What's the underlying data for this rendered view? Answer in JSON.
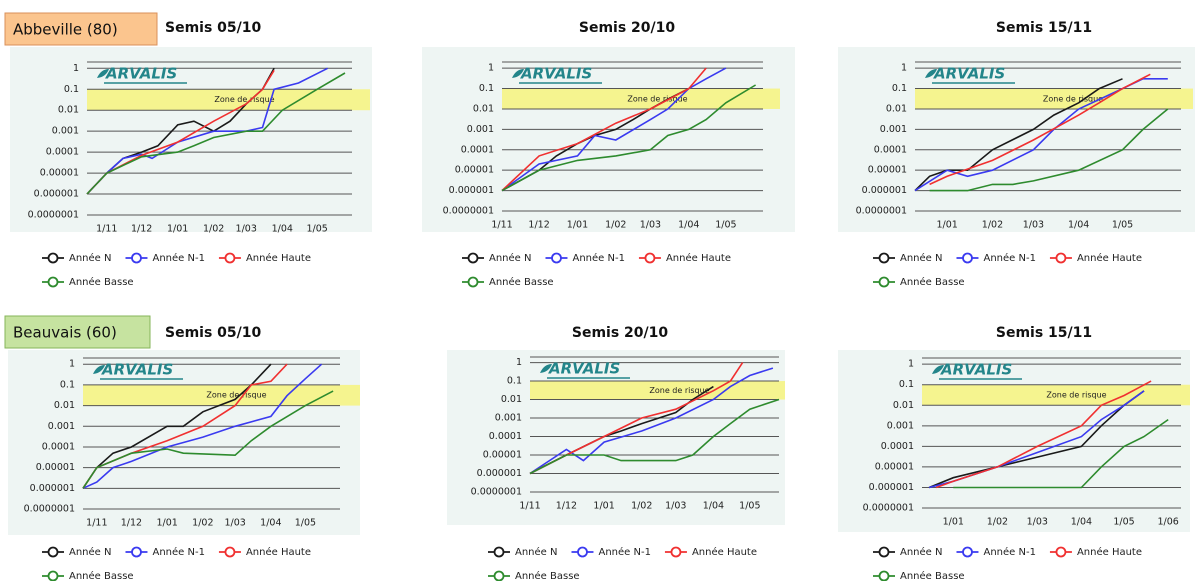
{
  "chart_data": [
    {
      "type": "line",
      "site": "Abbeville (80)",
      "title": "Semis 05/10",
      "logo": "ARVALIS",
      "yscale": "log",
      "grid": true,
      "ylim": [
        1e-07,
        2
      ],
      "yticks": [
        1,
        0.1,
        0.01,
        0.001,
        0.0001,
        1e-05,
        1e-06,
        {
          "value": 1e-07,
          "label": "0.0000001"
        }
      ],
      "xlim": [
        "15/10",
        "31/05"
      ],
      "xticks": [
        "1/11",
        "1/12",
        "1/01",
        "1/02",
        "1/03",
        "1/04",
        "1/05"
      ],
      "risk_zone": {
        "label": "Zone de risque",
        "range": [
          0.01,
          0.1
        ],
        "color": "#f6f37c"
      },
      "series": [
        {
          "name": "Année N",
          "color": "#1a1a1a",
          "x": [
            "15/10",
            "1/11",
            "15/11",
            "1/12",
            "15/12",
            "1/01",
            "15/01",
            "1/02",
            "15/02",
            "1/03",
            "15/03",
            "25/03"
          ],
          "values": [
            1e-06,
            1e-05,
            5e-05,
            0.0001,
            0.0002,
            0.002,
            0.003,
            0.001,
            0.003,
            0.02,
            0.1,
            1
          ]
        },
        {
          "name": "Année N-1",
          "color": "#3a3af0",
          "x": [
            "15/10",
            "1/11",
            "15/11",
            "1/12",
            "10/12",
            "1/01",
            "1/02",
            "1/03",
            "15/03",
            "25/03",
            "15/04",
            "10/05"
          ],
          "values": [
            1e-06,
            1e-05,
            5e-05,
            8e-05,
            5e-05,
            0.0003,
            0.001,
            0.001,
            0.0015,
            0.1,
            0.2,
            1
          ]
        },
        {
          "name": "Année Haute",
          "color": "#f03030",
          "x": [
            "15/10",
            "1/11",
            "1/12",
            "1/01",
            "1/02",
            "1/03",
            "15/03",
            "25/03"
          ],
          "values": [
            1e-06,
            1e-05,
            7e-05,
            0.0003,
            0.003,
            0.02,
            0.1,
            0.8
          ]
        },
        {
          "name": "Année Basse",
          "color": "#2e8b2e",
          "x": [
            "15/10",
            "1/11",
            "1/12",
            "1/01",
            "15/01",
            "1/02",
            "1/03",
            "15/03",
            "1/04",
            "1/05",
            "25/05"
          ],
          "values": [
            1e-06,
            1e-05,
            6e-05,
            0.0001,
            0.0002,
            0.0005,
            0.001,
            0.001,
            0.01,
            0.1,
            0.6
          ]
        }
      ]
    },
    {
      "type": "line",
      "title": "Semis 20/10",
      "logo": "ARVALIS",
      "yscale": "log",
      "grid": true,
      "ylim": [
        1e-07,
        2
      ],
      "yticks": [
        1,
        0.1,
        0.01,
        0.001,
        0.0001,
        1e-05,
        1e-06,
        {
          "value": 1e-07,
          "label": "0.0000001"
        }
      ],
      "xlim": [
        "1/11",
        "31/05"
      ],
      "xticks": [
        "1/11",
        "1/12",
        "1/01",
        "1/02",
        "1/03",
        "1/04",
        "1/05"
      ],
      "risk_zone": {
        "label": "Zone de risque",
        "range": [
          0.01,
          0.1
        ],
        "color": "#f6f37c"
      },
      "series": [
        {
          "name": "Année N",
          "color": "#1a1a1a",
          "x": [
            "1/11",
            "1/12",
            "15/12",
            "1/01",
            "15/01",
            "1/02",
            "15/02",
            "1/03",
            "15/03",
            "1/04"
          ],
          "values": [
            1e-06,
            1e-05,
            5e-05,
            0.0002,
            0.0005,
            0.001,
            0.003,
            0.01,
            0.03,
            0.1
          ]
        },
        {
          "name": "Année N-1",
          "color": "#3a3af0",
          "x": [
            "1/11",
            "1/12",
            "1/01",
            "15/01",
            "1/02",
            "1/03",
            "15/03",
            "1/04",
            "15/04",
            "1/05"
          ],
          "values": [
            1e-06,
            2e-05,
            5e-05,
            0.0005,
            0.0003,
            0.003,
            0.01,
            0.1,
            0.3,
            1
          ]
        },
        {
          "name": "Année Haute",
          "color": "#f03030",
          "x": [
            "1/11",
            "1/12",
            "1/01",
            "1/02",
            "1/03",
            "1/04",
            "15/04"
          ],
          "values": [
            1e-06,
            5e-05,
            0.0002,
            0.002,
            0.01,
            0.1,
            1
          ]
        },
        {
          "name": "Année Basse",
          "color": "#2e8b2e",
          "x": [
            "1/11",
            "1/12",
            "1/01",
            "1/02",
            "1/03",
            "15/03",
            "1/04",
            "15/04",
            "1/05",
            "25/05"
          ],
          "values": [
            1e-06,
            1e-05,
            3e-05,
            5e-05,
            0.0001,
            0.0005,
            0.001,
            0.003,
            0.02,
            0.15
          ]
        }
      ]
    },
    {
      "type": "line",
      "title": "Semis 15/11",
      "logo": "ARVALIS",
      "yscale": "log",
      "grid": true,
      "ylim": [
        1e-07,
        2
      ],
      "yticks": [
        1,
        0.1,
        0.01,
        0.001,
        0.0001,
        1e-05,
        1e-06,
        {
          "value": 1e-07,
          "label": "0.0000001"
        }
      ],
      "xlim": [
        "10/12",
        "10/06"
      ],
      "xticks": [
        "1/01",
        "1/02",
        "1/03",
        "1/04",
        "1/05"
      ],
      "risk_zone": {
        "label": "Zone de risque",
        "range": [
          0.01,
          0.1
        ],
        "color": "#f6f37c"
      },
      "series": [
        {
          "name": "Année N",
          "color": "#1a1a1a",
          "x": [
            "10/12",
            "20/12",
            "1/01",
            "15/01",
            "1/02",
            "1/03",
            "15/03",
            "1/04",
            "15/04",
            "1/05"
          ],
          "values": [
            1e-06,
            5e-06,
            1e-05,
            1e-05,
            0.0001,
            0.001,
            0.005,
            0.02,
            0.1,
            0.3
          ]
        },
        {
          "name": "Année N-1",
          "color": "#3a3af0",
          "x": [
            "10/12",
            "1/01",
            "15/01",
            "1/02",
            "1/03",
            "15/03",
            "1/04",
            "1/05",
            "15/05",
            "1/06"
          ],
          "values": [
            1e-06,
            1e-05,
            5e-06,
            1e-05,
            0.0001,
            0.001,
            0.01,
            0.1,
            0.3,
            0.3
          ]
        },
        {
          "name": "Année Haute",
          "color": "#f03030",
          "x": [
            "20/12",
            "1/01",
            "1/02",
            "1/03",
            "1/04",
            "15/04",
            "1/05",
            "20/05"
          ],
          "values": [
            2e-06,
            5e-06,
            3e-05,
            0.0003,
            0.005,
            0.02,
            0.1,
            0.5
          ]
        },
        {
          "name": "Année Basse",
          "color": "#2e8b2e",
          "x": [
            "20/12",
            "15/01",
            "1/02",
            "15/02",
            "1/03",
            "1/04",
            "1/05",
            "15/05",
            "1/06"
          ],
          "values": [
            1e-06,
            1e-06,
            2e-06,
            2e-06,
            3e-06,
            1e-05,
            0.0001,
            0.001,
            0.01
          ]
        }
      ]
    },
    {
      "type": "line",
      "site": "Beauvais (60)",
      "title": "Semis 05/10",
      "logo": "ARVALIS",
      "yscale": "log",
      "grid": true,
      "ylim": [
        1e-07,
        2
      ],
      "yticks": [
        1,
        0.1,
        0.01,
        0.001,
        0.0001,
        1e-05,
        1e-06,
        {
          "value": 1e-07,
          "label": "0.0000001"
        }
      ],
      "xlim": [
        "20/10",
        "31/05"
      ],
      "xticks": [
        "1/11",
        "1/12",
        "1/01",
        "1/02",
        "1/03",
        "1/04",
        "1/05"
      ],
      "risk_zone": {
        "label": "Zone de risque",
        "range": [
          0.01,
          0.1
        ],
        "color": "#f6f37c"
      },
      "series": [
        {
          "name": "Année N",
          "color": "#1a1a1a",
          "x": [
            "20/10",
            "1/11",
            "15/11",
            "1/12",
            "1/01",
            "15/01",
            "1/02",
            "1/03",
            "15/03",
            "1/04"
          ],
          "values": [
            1e-06,
            1e-05,
            5e-05,
            0.0001,
            0.001,
            0.001,
            0.005,
            0.02,
            0.1,
            1
          ]
        },
        {
          "name": "Année N-1",
          "color": "#3a3af0",
          "x": [
            "20/10",
            "1/11",
            "15/11",
            "1/12",
            "1/01",
            "1/02",
            "1/03",
            "1/04",
            "15/04",
            "1/05",
            "15/05"
          ],
          "values": [
            1e-06,
            2e-06,
            1e-05,
            2e-05,
            0.0001,
            0.0003,
            0.001,
            0.003,
            0.03,
            0.2,
            1
          ]
        },
        {
          "name": "Année Haute",
          "color": "#f03030",
          "x": [
            "20/10",
            "1/11",
            "1/12",
            "1/01",
            "1/02",
            "1/03",
            "15/03",
            "1/04",
            "15/04"
          ],
          "values": [
            1e-06,
            1e-05,
            5e-05,
            0.0002,
            0.001,
            0.01,
            0.1,
            0.15,
            1
          ]
        },
        {
          "name": "Année Basse",
          "color": "#2e8b2e",
          "x": [
            "20/10",
            "1/11",
            "1/12",
            "1/01",
            "15/01",
            "1/03",
            "15/03",
            "1/04",
            "1/05",
            "25/05"
          ],
          "values": [
            1e-06,
            1e-05,
            5e-05,
            8e-05,
            5e-05,
            4e-05,
            0.0002,
            0.001,
            0.01,
            0.05
          ]
        }
      ]
    },
    {
      "type": "line",
      "title": "Semis 20/10",
      "logo": "ARVALIS",
      "yscale": "log",
      "grid": true,
      "ylim": [
        1e-07,
        2
      ],
      "yticks": [
        1,
        0.1,
        0.01,
        0.001,
        0.0001,
        1e-05,
        1e-06,
        {
          "value": 1e-07,
          "label": "0.0000001"
        }
      ],
      "xlim": [
        "1/11",
        "25/05"
      ],
      "xticks": [
        "1/11",
        "1/12",
        "1/01",
        "1/02",
        "1/03",
        "1/04",
        "1/05"
      ],
      "risk_zone": {
        "label": "Zone de risque",
        "range": [
          0.01,
          0.1
        ],
        "color": "#f6f37c"
      },
      "series": [
        {
          "name": "Année N",
          "color": "#1a1a1a",
          "x": [
            "1/11",
            "1/12",
            "1/01",
            "15/01",
            "1/02",
            "1/03",
            "15/03",
            "1/04"
          ],
          "values": [
            1e-06,
            1e-05,
            0.0001,
            0.0002,
            0.0005,
            0.002,
            0.01,
            0.05
          ]
        },
        {
          "name": "Année N-1",
          "color": "#3a3af0",
          "x": [
            "1/11",
            "1/12",
            "15/12",
            "1/01",
            "1/02",
            "1/03",
            "1/04",
            "15/04",
            "1/05",
            "20/05"
          ],
          "values": [
            1e-06,
            2e-05,
            5e-06,
            5e-05,
            0.0002,
            0.001,
            0.01,
            0.05,
            0.2,
            0.5
          ]
        },
        {
          "name": "Année Haute",
          "color": "#f03030",
          "x": [
            "1/11",
            "1/12",
            "1/01",
            "1/02",
            "1/03",
            "1/04",
            "15/04",
            "25/04"
          ],
          "values": [
            1e-06,
            1e-05,
            0.0001,
            0.001,
            0.003,
            0.03,
            0.1,
            1
          ]
        },
        {
          "name": "Année Basse",
          "color": "#2e8b2e",
          "x": [
            "1/11",
            "1/12",
            "1/01",
            "15/01",
            "1/02",
            "1/03",
            "15/03",
            "1/04",
            "15/04",
            "1/05",
            "25/05"
          ],
          "values": [
            1e-06,
            1e-05,
            1e-05,
            5e-06,
            5e-06,
            5e-06,
            1e-05,
            0.0001,
            0.0005,
            0.003,
            0.01
          ]
        }
      ]
    },
    {
      "type": "line",
      "title": "Semis 15/11",
      "logo": "ARVALIS",
      "yscale": "log",
      "grid": true,
      "ylim": [
        1e-07,
        2
      ],
      "yticks": [
        1,
        0.1,
        0.01,
        0.001,
        0.0001,
        1e-05,
        1e-06,
        {
          "value": 1e-07,
          "label": "0.0000001"
        }
      ],
      "xlim": [
        "10/12",
        "10/06"
      ],
      "xticks": [
        "1/01",
        "1/02",
        "1/03",
        "1/04",
        "1/05",
        "1/06"
      ],
      "risk_zone": {
        "label": "Zone de risque",
        "range": [
          0.01,
          0.1
        ],
        "color": "#f6f37c"
      },
      "series": [
        {
          "name": "Année N",
          "color": "#1a1a1a",
          "x": [
            "15/12",
            "1/01",
            "1/02",
            "1/03",
            "1/04",
            "15/04",
            "1/05",
            "15/05"
          ],
          "values": [
            1e-06,
            3e-06,
            1e-05,
            3e-05,
            0.0001,
            0.001,
            0.01,
            0.05
          ]
        },
        {
          "name": "Année N-1",
          "color": "#3a3af0",
          "x": [
            "15/12",
            "1/01",
            "1/02",
            "1/03",
            "1/04",
            "15/04",
            "1/05",
            "15/05"
          ],
          "values": [
            1e-06,
            2e-06,
            1e-05,
            5e-05,
            0.0003,
            0.002,
            0.01,
            0.05
          ]
        },
        {
          "name": "Année Haute",
          "color": "#f03030",
          "x": [
            "20/12",
            "1/01",
            "1/02",
            "1/03",
            "1/04",
            "15/04",
            "1/05",
            "20/05"
          ],
          "values": [
            1e-06,
            2e-06,
            1e-05,
            0.0001,
            0.001,
            0.01,
            0.03,
            0.15
          ]
        },
        {
          "name": "Année Basse",
          "color": "#2e8b2e",
          "x": [
            "1/01",
            "1/02",
            "1/04",
            "15/04",
            "1/05",
            "15/05",
            "1/06"
          ],
          "values": [
            1e-06,
            1e-06,
            1e-06,
            1e-05,
            0.0001,
            0.0003,
            0.002
          ]
        }
      ]
    }
  ]
}
